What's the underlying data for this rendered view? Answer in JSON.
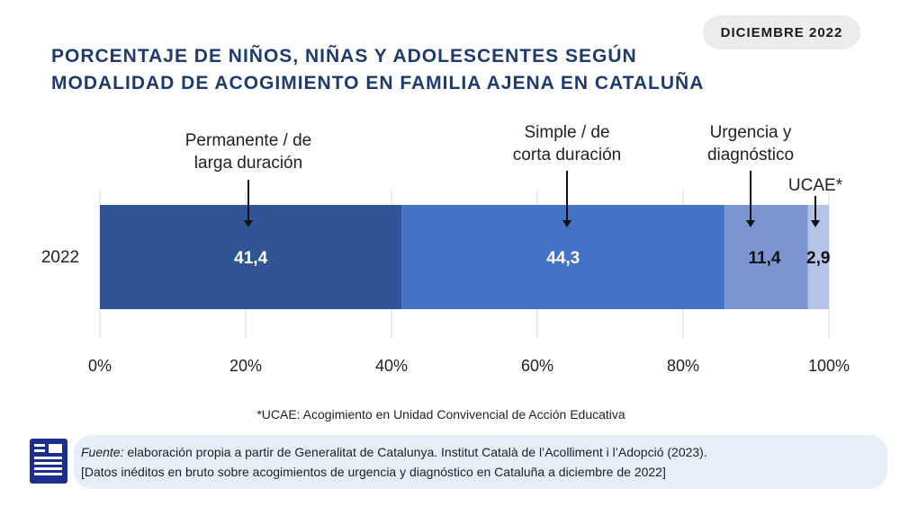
{
  "badge": "DICIEMBRE 2022",
  "title": {
    "line1": "PORCENTAJE DE NIÑOS, NIÑAS Y ADOLESCENTES SEGÚN",
    "line2": "MODALIDAD DE ACOGIMIENTO EN FAMILIA AJENA EN CATALUÑA"
  },
  "chart_data": {
    "type": "bar",
    "orientation": "horizontal-stacked",
    "categories": [
      "2022"
    ],
    "xlim": [
      0,
      100
    ],
    "x_ticks": [
      "0%",
      "20%",
      "40%",
      "60%",
      "80%",
      "100%"
    ],
    "series": [
      {
        "name": "Permanente / de larga duración",
        "label_lines": [
          "Permanente / de",
          "larga duración"
        ],
        "values": [
          41.4
        ],
        "display": "41,4",
        "color": "#2f5597",
        "label_color": "#ffffff"
      },
      {
        "name": "Simple / de corta duración",
        "label_lines": [
          "Simple / de",
          "corta duración"
        ],
        "values": [
          44.3
        ],
        "display": "44,3",
        "color": "#4472c4",
        "label_color": "#ffffff"
      },
      {
        "name": "Urgencia y diagnóstico",
        "label_lines": [
          "Urgencia y",
          "diagnóstico"
        ],
        "values": [
          11.4
        ],
        "display": "11,4",
        "color": "#7b95d3",
        "label_color": "#111111"
      },
      {
        "name": "UCAE*",
        "label_lines": [
          "UCAE*"
        ],
        "values": [
          2.9
        ],
        "display": "2,9",
        "color": "#b4c3e6",
        "label_color": "#111111"
      }
    ],
    "grid": true
  },
  "footnote": "*UCAE: Acogimiento en Unidad Convivencial de Acción Educativa",
  "source": {
    "label": "Fuente:",
    "line1": " elaboración propia a partir de Generalitat de Catalunya. Institut Català de l’Acolliment i l’Adopció (2023).",
    "line2": "[Datos inéditos en bruto sobre acogimientos de urgencia y diagnóstico en Cataluña a diciembre de 2022]"
  },
  "icons": {
    "source": "document-icon"
  }
}
